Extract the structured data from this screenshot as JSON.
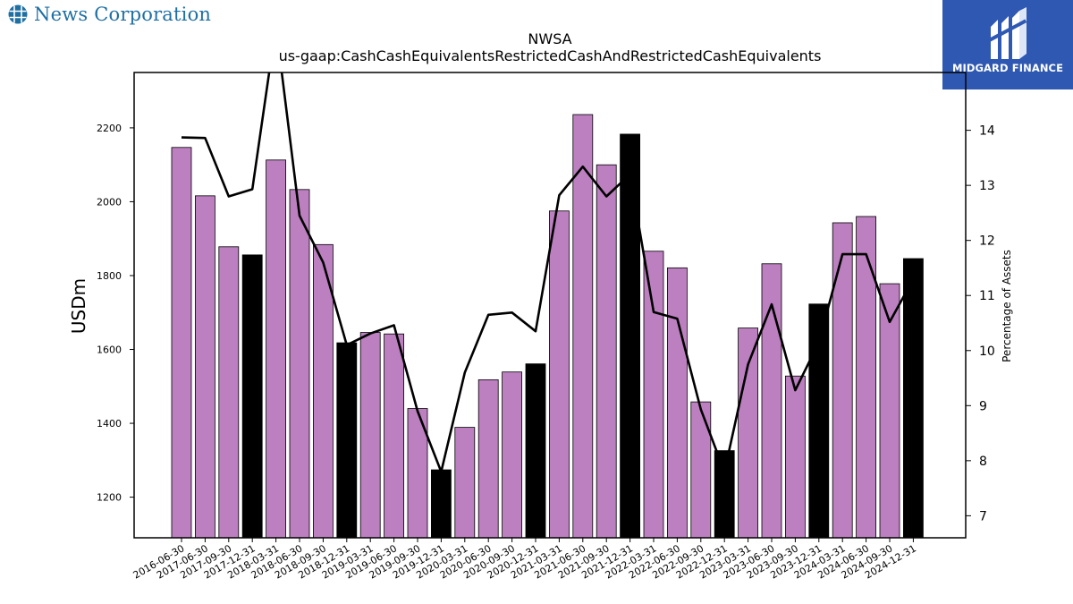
{
  "header": {
    "company_name": "News Corporation",
    "company_icon": "globe-icon",
    "brand_name": "MIDGARD FINANCE",
    "brand_icon": "midgard-logo-icon",
    "brand_bg": "#2e58b2",
    "company_color": "#1f6fa3"
  },
  "chart_data": {
    "type": "bar",
    "title": "NWSA",
    "subtitle": "us-gaap:CashCashEquivalentsRestrictedCashAndRestrictedCashEquivalents",
    "ylabel": "USDm",
    "y2label": "Percentage of Assets",
    "ylim": [
      1090,
      2350
    ],
    "y2lim": [
      6.6,
      15.05
    ],
    "yticks": [
      1200,
      1400,
      1600,
      1800,
      2000,
      2200
    ],
    "y2ticks": [
      7,
      8,
      9,
      10,
      11,
      12,
      13,
      14
    ],
    "grid": false,
    "colors": {
      "quarter": "#bc7fbf",
      "year_end": "#000000",
      "line": "#000000"
    },
    "categories": [
      "2016-06-30",
      "2017-06-30",
      "2017-09-30",
      "2017-12-31",
      "2018-03-31",
      "2018-06-30",
      "2018-09-30",
      "2018-12-31",
      "2019-03-31",
      "2019-06-30",
      "2019-09-30",
      "2019-12-31",
      "2020-03-31",
      "2020-06-30",
      "2020-09-30",
      "2020-12-31",
      "2021-03-31",
      "2021-06-30",
      "2021-09-30",
      "2021-12-31",
      "2022-03-31",
      "2022-06-30",
      "2022-09-30",
      "2022-12-31",
      "2023-03-31",
      "2023-06-30",
      "2023-09-30",
      "2023-12-31",
      "2024-03-31",
      "2024-06-30",
      "2024-09-30",
      "2024-12-31"
    ],
    "series": [
      {
        "type": "bar",
        "values": [
          2147,
          2016,
          1878,
          1856,
          2113,
          2033,
          1884,
          1618,
          1646,
          1642,
          1440,
          1274,
          1389,
          1518,
          1539,
          1561,
          1975,
          2236,
          2100,
          2183,
          1866,
          1821,
          1458,
          1326,
          1658,
          1832,
          1528,
          1723,
          1943,
          1960,
          1778,
          1846
        ],
        "highlight": [
          false,
          false,
          false,
          true,
          false,
          false,
          false,
          true,
          false,
          false,
          false,
          true,
          false,
          false,
          false,
          true,
          false,
          false,
          false,
          true,
          false,
          false,
          false,
          true,
          false,
          false,
          false,
          true,
          false,
          false,
          false,
          true
        ]
      },
      {
        "type": "line",
        "axis": "y2",
        "values": [
          13.87,
          13.86,
          12.8,
          12.93,
          15.9,
          12.45,
          11.6,
          10.1,
          10.31,
          10.46,
          8.9,
          7.8,
          9.6,
          10.65,
          10.69,
          10.35,
          12.82,
          13.34,
          12.8,
          13.2,
          10.7,
          10.58,
          8.93,
          7.8,
          9.75,
          10.84,
          9.28,
          10.15,
          11.75,
          11.75,
          10.52,
          11.3
        ]
      }
    ]
  }
}
